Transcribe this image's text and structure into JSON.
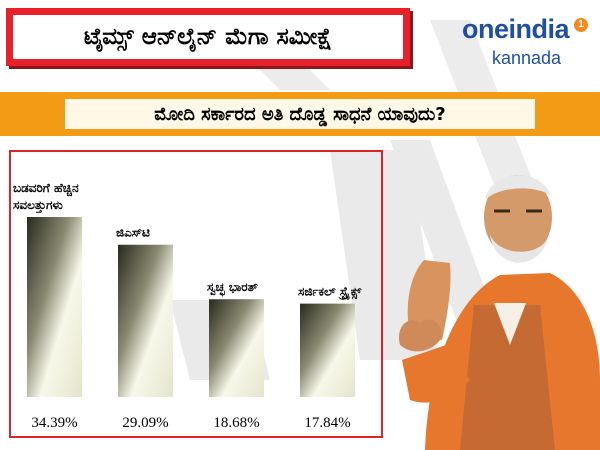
{
  "header": {
    "title": "ಟೈಮ್ಸ್ ಆನ್‌ಲೈನ್ ಮೆಗಾ ಸಮೀಕ್ಷೆ",
    "question": "ಮೋದಿ ಸರ್ಕಾರದ ಅತಿ ದೊಡ್ಡ ಸಾಧನೆ ಯಾವುದು?"
  },
  "logo": {
    "brand": "oneindia",
    "sub": "kannada",
    "badge": "1"
  },
  "colors": {
    "title_red": "#e8202a",
    "question_orange": "#f49b16",
    "frame_red": "#e0222a",
    "brand_blue": "#1f4fa3"
  },
  "chart_data": {
    "type": "bar",
    "categories": [
      "ಬಡವರಿಗೆ ಹೆಚ್ಚಿನ ಸವಲತ್ತುಗಳು",
      "ಜಿಎಸ್‌ಟಿ",
      "ಸ್ವಚ್ಛ ಭಾರತ್",
      "ಸರ್ಜಿಕಲ್ ಸ್ಟ್ರೈಕ್ಸ್"
    ],
    "category_lines": [
      [
        "ಬಡವರಿಗೆ ಹೆಚ್ಚಿನ",
        "ಸವಲತ್ತುಗಳು"
      ],
      [
        "ಜಿಎಸ್‌ಟಿ"
      ],
      [
        "ಸ್ವಚ್ಛ ಭಾರತ್"
      ],
      [
        "ಸರ್ಜಿಕಲ್ ಸ್ಟ್ರೈಕ್ಸ್"
      ]
    ],
    "values": [
      34.39,
      29.09,
      18.68,
      17.84
    ],
    "value_labels": [
      "34.39%",
      "29.09%",
      "18.68%",
      "17.84%"
    ],
    "unit": "%",
    "ylim": [
      0,
      40
    ],
    "grid": false,
    "legend": "none"
  }
}
